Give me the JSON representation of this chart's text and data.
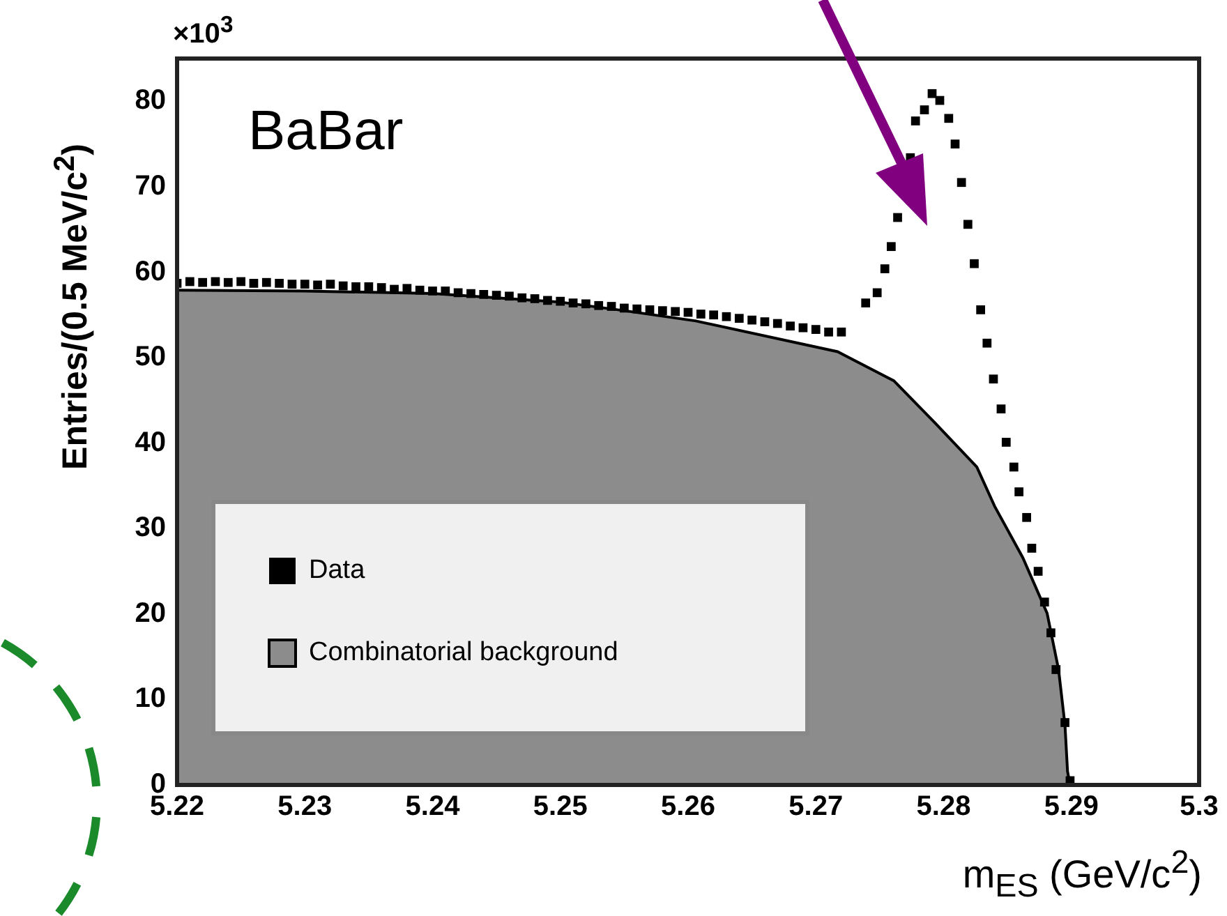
{
  "chart_data": {
    "type": "scatter",
    "xlabel": "m$_{ES}$ (GeV/c$^{2}$)",
    "ylabel": "Entries/(0.5 MeV/c$^{2}$)",
    "annotations": [
      "×10$^{3}$",
      "BaBar"
    ],
    "xlim": [
      5.22,
      5.3
    ],
    "xticks": [
      {
        "value": 5.22,
        "label": "5.22"
      },
      {
        "value": 5.23,
        "label": "5.23"
      },
      {
        "value": 5.24,
        "label": "5.24"
      },
      {
        "value": 5.25,
        "label": "5.25"
      },
      {
        "value": 5.26,
        "label": "5.26"
      },
      {
        "value": 5.27,
        "label": "5.27"
      },
      {
        "value": 5.28,
        "label": "5.28"
      },
      {
        "value": 5.29,
        "label": "5.29"
      },
      5.3
    ],
    "ylim": [
      0,
      85
    ],
    "yticks": [
      0,
      10,
      20,
      30,
      40,
      50,
      60,
      70,
      80
    ],
    "grid": false,
    "legend": "bottom left",
    "marker": "square",
    "series": [
      {
        "name": "Combinatorial background",
        "type": "area",
        "marker": "none",
        "color": "#8c8c8c",
        "x": [
          5.22,
          5.23,
          5.24,
          5.25,
          5.255,
          5.2606,
          5.2717,
          5.2761,
          5.2793,
          5.2826,
          5.284,
          5.2862,
          5.2881,
          5.289,
          5.2895,
          5.2897,
          5.2899
        ],
        "values": [
          57.9,
          57.8,
          57.5,
          56.5,
          55.5,
          54.3,
          50.7,
          47.3,
          42.4,
          37.2,
          32.6,
          26.6,
          20.1,
          13.5,
          7.0,
          1.6,
          0
        ]
      },
      {
        "name": "Data",
        "color": "#000000",
        "x": [
          5.22,
          5.221,
          5.222,
          5.223,
          5.224,
          5.225,
          5.226,
          5.227,
          5.228,
          5.229,
          5.23,
          5.231,
          5.232,
          5.233,
          5.234,
          5.235,
          5.236,
          5.237,
          5.238,
          5.239,
          5.24,
          5.241,
          5.242,
          5.243,
          5.244,
          5.245,
          5.246,
          5.247,
          5.248,
          5.249,
          5.25,
          5.251,
          5.252,
          5.253,
          5.254,
          5.255,
          5.256,
          5.257,
          5.258,
          5.259,
          5.26,
          5.261,
          5.262,
          5.263,
          5.264,
          5.265,
          5.266,
          5.267,
          5.268,
          5.269,
          5.27,
          5.271,
          5.272,
          5.2739,
          5.2748,
          5.2754,
          5.2759,
          5.2764,
          5.2774,
          5.2778,
          5.2785,
          5.2791,
          5.2797,
          5.2804,
          5.2809,
          5.2814,
          5.2819,
          5.2824,
          5.2829,
          5.2834,
          5.2839,
          5.2845,
          5.2849,
          5.2855,
          5.2859,
          5.2865,
          5.2869,
          5.2874,
          5.2879,
          5.2884,
          5.2888,
          5.2895,
          5.2899
        ],
        "values": [
          58.7,
          58.9,
          58.8,
          58.9,
          58.8,
          58.9,
          58.7,
          58.8,
          58.7,
          58.6,
          58.6,
          58.5,
          58.6,
          58.4,
          58.3,
          58.3,
          58.2,
          58.0,
          58.1,
          57.9,
          57.8,
          57.8,
          57.6,
          57.5,
          57.4,
          57.3,
          57.2,
          57.0,
          56.9,
          56.7,
          56.6,
          56.4,
          56.3,
          56.1,
          56.0,
          55.8,
          55.7,
          55.6,
          55.5,
          55.4,
          55.3,
          55.1,
          55.0,
          54.8,
          54.6,
          54.4,
          54.2,
          54.0,
          53.7,
          53.5,
          53.3,
          53.0,
          53.0,
          56.4,
          57.6,
          60.4,
          63.0,
          66.4,
          73.4,
          77.7,
          79.0,
          80.9,
          80.1,
          78.0,
          75.0,
          70.5,
          65.6,
          61.0,
          55.6,
          51.7,
          47.5,
          44.0,
          40.1,
          37.2,
          34.3,
          31.3,
          27.7,
          25.0,
          21.4,
          17.8,
          13.5,
          7.3,
          0.5
        ]
      }
    ]
  }
}
